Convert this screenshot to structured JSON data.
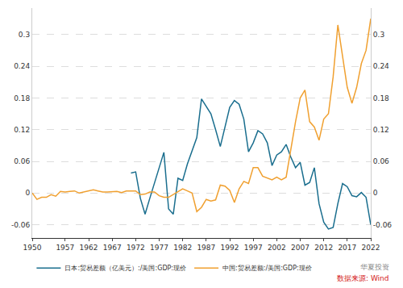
{
  "chart_data": {
    "type": "line",
    "x": [
      1950,
      1951,
      1952,
      1953,
      1954,
      1955,
      1956,
      1957,
      1958,
      1959,
      1960,
      1961,
      1962,
      1963,
      1964,
      1965,
      1966,
      1967,
      1968,
      1969,
      1970,
      1971,
      1972,
      1973,
      1974,
      1975,
      1976,
      1977,
      1978,
      1979,
      1980,
      1981,
      1982,
      1983,
      1984,
      1985,
      1986,
      1987,
      1988,
      1989,
      1990,
      1991,
      1992,
      1993,
      1994,
      1995,
      1996,
      1997,
      1998,
      1999,
      2000,
      2001,
      2002,
      2003,
      2004,
      2005,
      2006,
      2007,
      2008,
      2009,
      2010,
      2011,
      2012,
      2013,
      2014,
      2015,
      2016,
      2017,
      2018,
      2019,
      2020,
      2021,
      2022
    ],
    "series": [
      {
        "name": "日本:贸易差额（亿美元）:/美国:GDP:现价",
        "color": "#1a6e8e",
        "values": [
          null,
          null,
          null,
          null,
          null,
          null,
          null,
          null,
          null,
          null,
          null,
          null,
          null,
          null,
          null,
          null,
          null,
          null,
          null,
          null,
          null,
          0.038,
          0.04,
          -0.01,
          -0.04,
          -0.01,
          0.02,
          0.05,
          0.077,
          -0.03,
          -0.04,
          0.028,
          0.024,
          0.055,
          0.08,
          0.105,
          0.178,
          0.165,
          0.15,
          0.12,
          0.088,
          0.125,
          0.162,
          0.175,
          0.168,
          0.14,
          0.078,
          0.095,
          0.118,
          0.112,
          0.095,
          0.052,
          0.072,
          0.078,
          0.092,
          0.068,
          0.048,
          0.058,
          0.015,
          0.02,
          0.048,
          -0.02,
          -0.055,
          -0.068,
          -0.065,
          -0.02,
          0.018,
          0.012,
          -0.005,
          -0.007,
          0.001,
          -0.008,
          -0.06
        ]
      },
      {
        "name": "中国:贸易差额:/美国:GDP:现价",
        "color": "#f0a030",
        "axis": "y2",
        "values": [
          0,
          -0.012,
          -0.008,
          -0.008,
          -0.003,
          -0.006,
          0.003,
          0.002,
          0.003,
          0.004,
          0,
          0.002,
          0.005,
          0.006,
          0.004,
          0.002,
          0.002,
          0.002,
          0.003,
          0.001,
          0.004,
          0.004,
          0.004,
          -0.003,
          -0.002,
          0.002,
          0.002,
          -0.005,
          -0.008,
          -0.008,
          -0.003,
          0.002,
          0.008,
          0.004,
          0,
          -0.035,
          -0.027,
          -0.012,
          -0.015,
          -0.013,
          0.015,
          0.013,
          0.005,
          -0.018,
          0.008,
          0.022,
          0.018,
          0.048,
          0.048,
          0.032,
          0.028,
          0.025,
          0.03,
          0.025,
          0.03,
          0.085,
          0.135,
          0.18,
          0.195,
          0.135,
          0.125,
          0.1,
          0.14,
          0.15,
          0.22,
          0.318,
          0.255,
          0.2,
          0.17,
          0.2,
          0.245,
          0.27,
          0.33
        ]
      }
    ],
    "xlim": [
      1950,
      2022
    ],
    "xticks": [
      1950,
      1957,
      1962,
      1967,
      1972,
      1977,
      1982,
      1987,
      1992,
      1997,
      2002,
      2007,
      2012,
      2017,
      2022
    ],
    "ylim": [
      -0.085,
      0.35
    ],
    "yticks": [
      -0.06,
      0,
      0.06,
      0.12,
      0.18,
      0.24,
      0.3
    ],
    "y2lim": [
      -0.085,
      0.35
    ],
    "y2ticks": [
      -0.06,
      0,
      0.06,
      0.12,
      0.18,
      0.24,
      0.3
    ],
    "grid": true,
    "legend": "bottom",
    "annotations": [
      "华夏投资",
      "数据来源: Wind"
    ]
  }
}
